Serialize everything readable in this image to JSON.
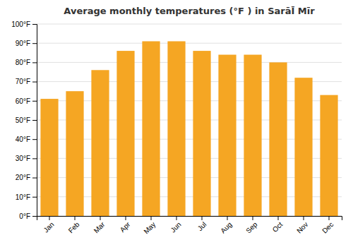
{
  "chart_data": {
    "type": "bar",
    "title": "Average monthly temperatures (°F ) in SarāĪ Mīr",
    "categories": [
      "Jan",
      "Feb",
      "Mar",
      "Apr",
      "May",
      "Jun",
      "Jul",
      "Aug",
      "Sep",
      "Oct",
      "Nov",
      "Dec"
    ],
    "values": [
      61,
      65,
      76,
      86,
      91,
      91,
      86,
      84,
      84,
      80,
      72,
      63
    ],
    "color": "#F5A623",
    "ylim": [
      0,
      100
    ],
    "yticks": [
      {
        "value": 0,
        "label": "0°F"
      },
      {
        "value": 10,
        "label": "10°F"
      },
      {
        "value": 20,
        "label": "20°F"
      },
      {
        "value": 30,
        "label": "30°F"
      },
      {
        "value": 40,
        "label": "40°F"
      },
      {
        "value": 50,
        "label": "50°F"
      },
      {
        "value": 60,
        "label": "60°F"
      },
      {
        "value": 70,
        "label": "70°F"
      },
      {
        "value": 80,
        "label": "80°F"
      },
      {
        "value": 90,
        "label": "90°F"
      },
      {
        "value": 100,
        "label": "100°F"
      }
    ],
    "grid": true
  }
}
